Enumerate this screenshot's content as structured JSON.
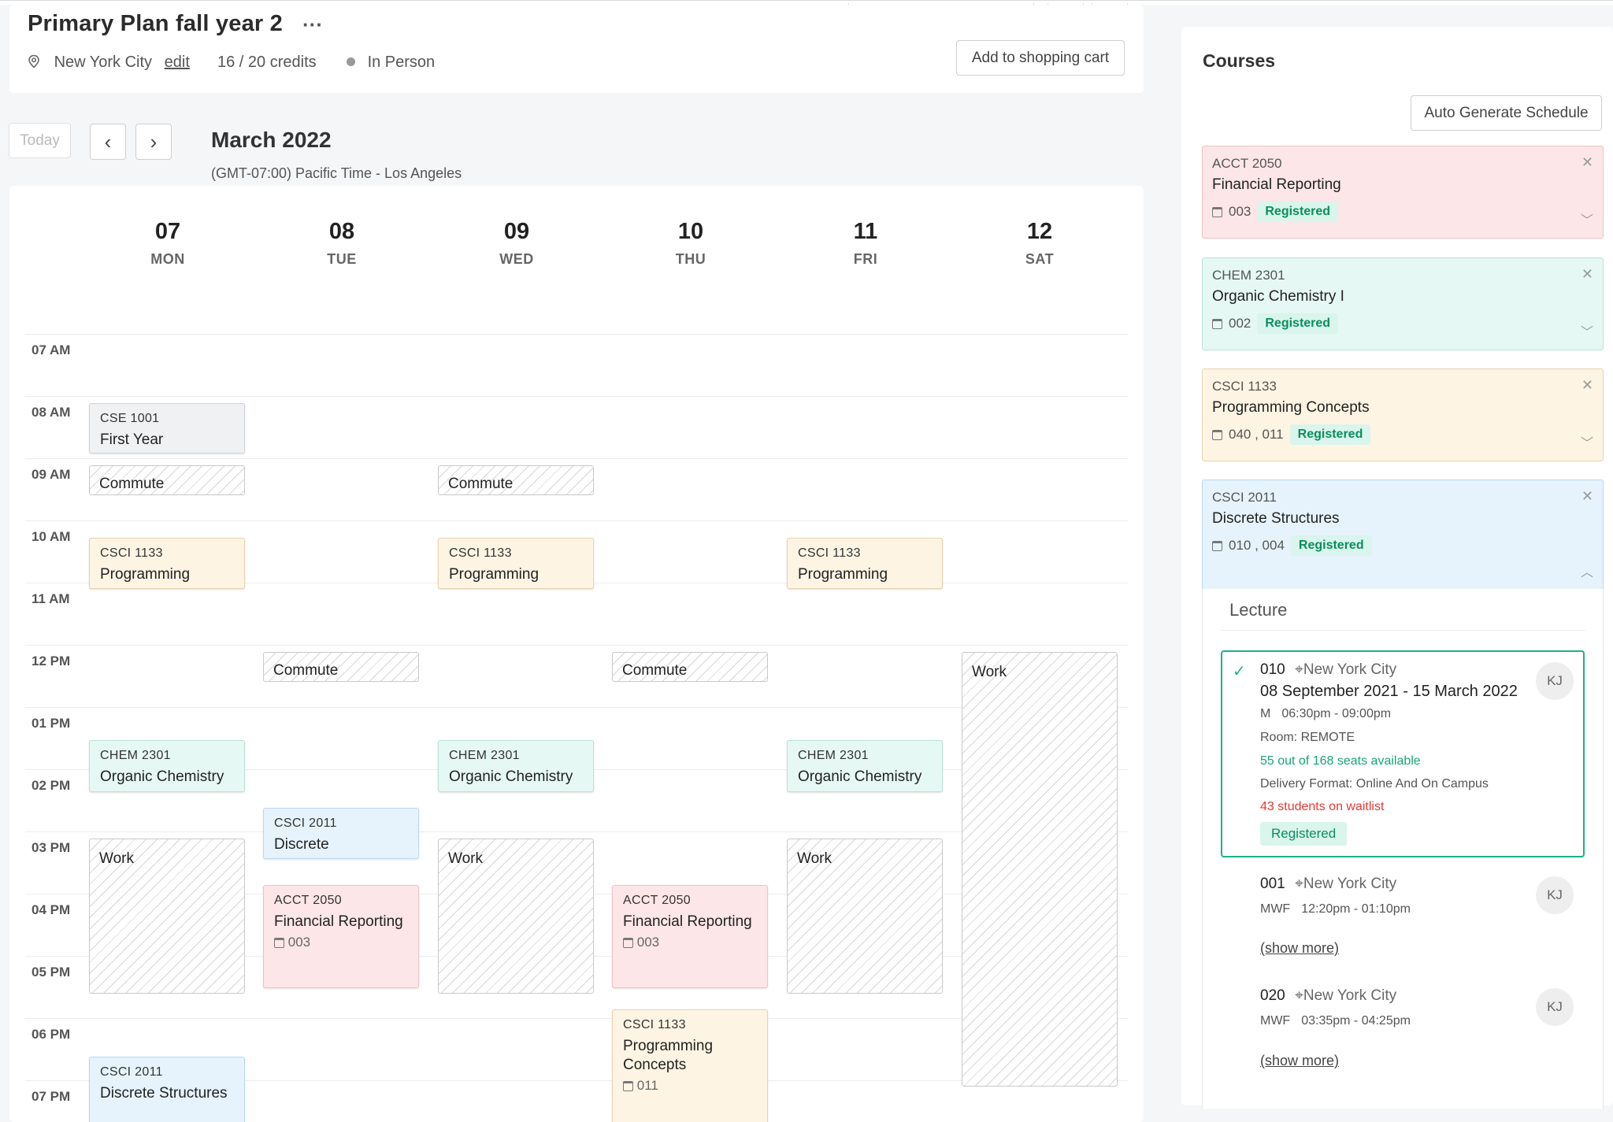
{
  "header": {
    "plan_title": "Primary Plan fall year 2",
    "more_label": "···",
    "location": "New York City",
    "edit_label": "edit",
    "credits": "16 / 20 credits",
    "mode": "In Person",
    "cart_button": "Add to shopping cart"
  },
  "toolbar": {
    "today": "Today",
    "prev": "‹",
    "next": "›",
    "month": "March 2022",
    "timezone": "(GMT-07:00) Pacific Time - Los Angeles"
  },
  "days": [
    {
      "num": "07",
      "name": "MON"
    },
    {
      "num": "08",
      "name": "TUE"
    },
    {
      "num": "09",
      "name": "WED"
    },
    {
      "num": "10",
      "name": "THU"
    },
    {
      "num": "11",
      "name": "FRI"
    },
    {
      "num": "12",
      "name": "SAT"
    }
  ],
  "hours": [
    "07 AM",
    "08 AM",
    "09 AM",
    "10 AM",
    "11 AM",
    "12 PM",
    "01 PM",
    "02 PM",
    "03 PM",
    "04 PM",
    "05 PM",
    "06 PM",
    "07 PM"
  ],
  "events": {
    "cse_mon": {
      "code": "CSE 1001",
      "name": "First Year"
    },
    "commute": "Commute",
    "work": "Work",
    "csci1133_short": {
      "code": "CSCI 1133",
      "name": "Programming"
    },
    "chem": {
      "code": "CHEM 2301",
      "name": "Organic Chemistry"
    },
    "csci2011_tue": {
      "code": "CSCI 2011",
      "name": "Discrete"
    },
    "acct": {
      "code": "ACCT 2050",
      "name": "Financial Reporting",
      "section": "003"
    },
    "csci1133_thu": {
      "code": "CSCI 1133",
      "name": "Programming Concepts",
      "section": "011"
    },
    "csci2011_mon": {
      "code": "CSCI 2011",
      "name": "Discrete Structures"
    }
  },
  "sidebar": {
    "title": "Courses",
    "auto_button": "Auto Generate Schedule",
    "courses": [
      {
        "code": "ACCT 2050",
        "name": "Financial Reporting",
        "sections": "003",
        "status": "Registered",
        "color": "#fde6e7"
      },
      {
        "code": "CHEM 2301",
        "name": "Organic Chemistry I",
        "sections": "002",
        "status": "Registered",
        "color": "#e6f8f3"
      },
      {
        "code": "CSCI 1133",
        "name": "Programming Concepts",
        "sections": "040 ,  011",
        "status": "Registered",
        "color": "#fdf4e3"
      },
      {
        "code": "CSCI 2011",
        "name": "Discrete Structures",
        "sections": "010 ,  004",
        "status": "Registered",
        "color": "#e6f3fc"
      }
    ],
    "lecture_label": "Lecture",
    "options": [
      {
        "number": "010",
        "location": "New York City",
        "dates": "08 September 2021 - 15 March 2022",
        "days": "M",
        "time": "06:30pm - 09:00pm",
        "room": "Room: REMOTE",
        "seats": "55 out of 168 seats available",
        "delivery": "Delivery Format: Online And On Campus",
        "waitlist": "43 students on waitlist",
        "status": "Registered",
        "instructor": "KJ"
      },
      {
        "number": "001",
        "location": "New York City",
        "days": "MWF",
        "time": "12:20pm - 01:10pm",
        "show_more": "(show more)",
        "instructor": "KJ"
      },
      {
        "number": "020",
        "location": "New York City",
        "days": "MWF",
        "time": "03:35pm - 04:25pm",
        "show_more": "(show more)",
        "instructor": "KJ"
      }
    ]
  },
  "colors": {
    "accent_green": "#1ab387",
    "seats_green": "#17a673",
    "waitlist_red": "#e53935"
  }
}
